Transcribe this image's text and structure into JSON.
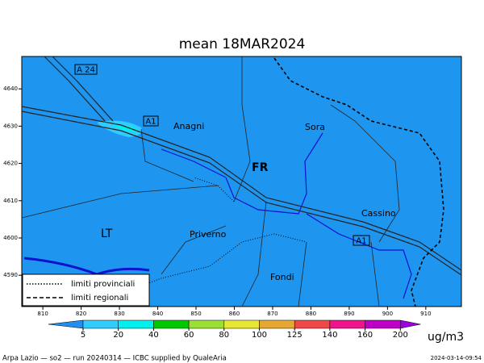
{
  "title": "mean 18MAR2024",
  "map": {
    "xlim": [
      804.5,
      919.3
    ],
    "ylim": [
      4581.6,
      4648.7
    ],
    "xticks": [
      810,
      820,
      830,
      840,
      850,
      860,
      870,
      880,
      890,
      900,
      910
    ],
    "yticks": [
      4590,
      4600,
      4610,
      4620,
      4630,
      4640
    ],
    "places": [
      "Anagni",
      "Sora",
      "FR",
      "Cassino",
      "LT",
      "Priverno",
      "Fondi"
    ],
    "roads": [
      "A 24",
      "A1",
      "A1"
    ]
  },
  "legend": [
    "limiti provinciali",
    "limiti regionali"
  ],
  "colorbar": {
    "levels": [
      5,
      20,
      40,
      60,
      80,
      100,
      125,
      140,
      160,
      200
    ],
    "colors": [
      "#1f8ff0",
      "#33ccff",
      "#00f0f0",
      "#00c800",
      "#99e033",
      "#e6e633",
      "#e6a833",
      "#f04848",
      "#f0148c",
      "#c000c8",
      "#a000e0"
    ],
    "unit": "ug/m3"
  },
  "footer": {
    "left": "Arpa Lazio — so2 — run 20240314 — ICBC supplied by QualeAria",
    "right": "2024-03-14-09:54"
  }
}
